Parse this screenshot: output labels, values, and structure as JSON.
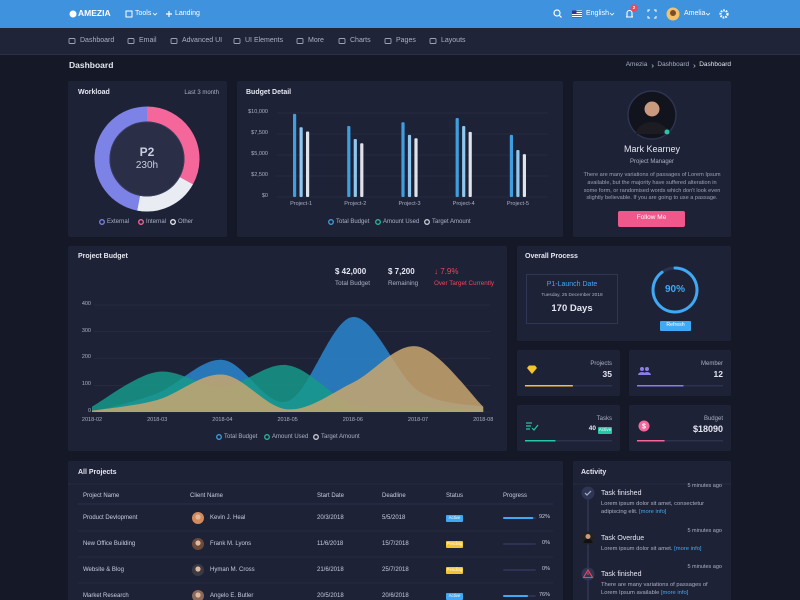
{
  "topbar": {
    "brand": "AMEZIA",
    "tools": "Tools",
    "landing": "Landing",
    "language": "English",
    "notifications": "2",
    "user": "Amelia"
  },
  "nav": [
    "Dashboard",
    "Email",
    "Advanced UI",
    "UI Elements",
    "More",
    "Charts",
    "Pages",
    "Layouts"
  ],
  "page": {
    "title": "Dashboard",
    "breadcrumb": [
      "Amezia",
      "Dashboard",
      "Dashboard"
    ]
  },
  "workload": {
    "title": "Workload",
    "period": "Last 3 month",
    "center_title": "P2",
    "center_value": "230h",
    "chart_data": {
      "type": "donut",
      "categories": [
        "External",
        "Internal",
        "Other"
      ],
      "values": [
        47,
        33,
        20
      ],
      "colors": [
        "#7c82e6",
        "#f5679b",
        "#e9ecf2"
      ]
    }
  },
  "budget_detail": {
    "title": "Budget Detail",
    "chart_data": {
      "type": "bar",
      "categories": [
        "Project-1",
        "Project-2",
        "Project-3",
        "Project-4",
        "Project-5"
      ],
      "series": [
        {
          "name": "Total Budget",
          "color": "#3d9fe0",
          "values": [
            9900,
            8450,
            8900,
            9400,
            7400
          ]
        },
        {
          "name": "Amount Used",
          "color": "#8fc7ee",
          "values": [
            8300,
            6900,
            7400,
            8450,
            5600
          ]
        },
        {
          "name": "Target Amount",
          "color": "#dfe3ea",
          "values": [
            7800,
            6400,
            7000,
            7750,
            5100
          ]
        }
      ],
      "legend_colors": [
        "#3d9fe0",
        "#26b99a",
        "#c9ced8"
      ],
      "ylim": [
        0,
        10000
      ],
      "yticks": [
        {
          "value": 0,
          "label": "$0"
        },
        {
          "value": 2500,
          "label": "$2,500"
        },
        {
          "value": 5000,
          "label": "$5,000"
        },
        {
          "value": 7500,
          "label": "$7,500"
        },
        {
          "value": 10000,
          "label": "$10,000"
        }
      ],
      "grid": true
    }
  },
  "profile": {
    "name": "Mark Kearney",
    "role": "Project Manager",
    "bio": "There are many variations of passages of Lorem Ipsum available, but the majority have suffered alteration in some form, or randomised words which don't look even slightly believable. If you are going to use a passage.",
    "button": "Follow Me"
  },
  "project_budget": {
    "title": "Project Budget",
    "stats": [
      {
        "value": "$ 42,000",
        "label": "Total Budget"
      },
      {
        "value": "$ 7,200",
        "label": "Remaining"
      },
      {
        "value": "↓ 7.9%",
        "label": "Over Target Currently"
      }
    ],
    "chart_data": {
      "type": "area",
      "categories": [
        "2018-02",
        "2018-03",
        "2018-04",
        "2018-05",
        "2018-06",
        "2018-07",
        "2018-08"
      ],
      "series": [
        {
          "name": "Total Budget",
          "color": "#2a86cf",
          "values": [
            0,
            70,
            195,
            40,
            355,
            80,
            20
          ]
        },
        {
          "name": "Amount Used",
          "color": "#16998a",
          "values": [
            20,
            150,
            95,
            175,
            30,
            20,
            10
          ]
        },
        {
          "name": "Target Amount",
          "color": "#c9a66e",
          "values": [
            5,
            45,
            140,
            10,
            110,
            245,
            20
          ]
        }
      ],
      "legend_colors": [
        "#3d9fe0",
        "#26b99a",
        "#c9ced8"
      ],
      "ylim": [
        0,
        400
      ],
      "yticks": [
        0,
        100,
        200,
        300,
        400
      ],
      "grid": true
    }
  },
  "overall_process": {
    "title": "Overall Process",
    "milestone": "P1-Launch Date",
    "date": "Tuesday, 25 December 2018",
    "remaining": "170 Days",
    "button": "Refresh",
    "chart_data": {
      "type": "gauge",
      "values": [
        90
      ],
      "value_labels": [
        "90%"
      ],
      "ylim": [
        0,
        100
      ],
      "color": "#3fa9f5"
    }
  },
  "stats": [
    {
      "label": "Projects",
      "value": "35",
      "progress": 55,
      "color": "#f4c430"
    },
    {
      "label": "Member",
      "value": "12",
      "progress": 54,
      "color": "#8a7ee8"
    },
    {
      "label": "Tasks",
      "value": "40",
      "badge": "Active",
      "progress": 35,
      "color": "#26c6a8"
    },
    {
      "label": "Budget",
      "value": "$18090",
      "progress": 32,
      "color": "#f5679b"
    }
  ],
  "projects": {
    "title": "All Projects",
    "columns": [
      "Project Name",
      "Client Name",
      "Start Date",
      "Deadline",
      "Status",
      "Progress"
    ],
    "rows": [
      {
        "name": "Product Devlopment",
        "client": "Kevin J. Heal",
        "start": "20/3/2018",
        "deadline": "5/5/2018",
        "status": "Active",
        "status_color": "#3fa9f5",
        "progress": 92,
        "progress_label": "92%"
      },
      {
        "name": "New Office Building",
        "client": "Frank M. Lyons",
        "start": "11/6/2018",
        "deadline": "15/7/2018",
        "status": "Pending",
        "status_color": "#f4c430",
        "progress": 0,
        "progress_label": "0%"
      },
      {
        "name": "Website & Blog",
        "client": "Hyman M. Cross",
        "start": "21/6/2018",
        "deadline": "25/7/2018",
        "status": "Pending",
        "status_color": "#f4c430",
        "progress": 0,
        "progress_label": "0%"
      },
      {
        "name": "Market Research",
        "client": "Angelo E. Butler",
        "start": "20/5/2018",
        "deadline": "20/6/2018",
        "status": "Active",
        "status_color": "#3fa9f5",
        "progress": 76,
        "progress_label": "76%"
      }
    ]
  },
  "activity": {
    "title": "Activity",
    "items": [
      {
        "title": "Task finished",
        "time": "5 minutes ago",
        "text": "Lorem ipsum dolor sit amet, consectetur adipiscing elit.",
        "link": "[more info]"
      },
      {
        "title": "Task Overdue",
        "time": "5 minutes ago",
        "text": "Lorem ipsum dolor sit amet.",
        "link": "[more info]"
      },
      {
        "title": "Task finished",
        "time": "5 minutes ago",
        "text": "There are many variations of passages of Lorem Ipsum available",
        "link": "[more info]"
      }
    ]
  }
}
